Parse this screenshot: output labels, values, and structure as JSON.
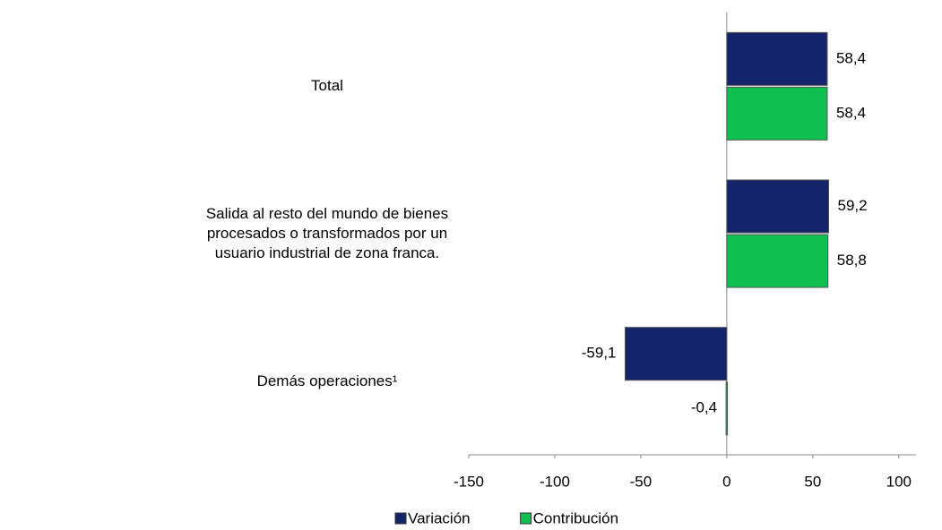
{
  "chart_data": {
    "type": "bar",
    "orientation": "horizontal",
    "categories": [
      "Total",
      "Salida al resto del mundo de bienes procesados o transformados por un usuario industrial de zona franca.",
      "Demás operaciones¹"
    ],
    "series": [
      {
        "name": "Variación",
        "color": "#14246a",
        "values": [
          58.4,
          59.2,
          -59.1
        ],
        "value_labels": [
          "58,4",
          "59,2",
          "-59,1"
        ]
      },
      {
        "name": "Contribución",
        "color": "#0fbf50",
        "values": [
          58.4,
          58.8,
          -0.4
        ],
        "value_labels": [
          "58,4",
          "58,8",
          "-0,4"
        ]
      }
    ],
    "xlim": [
      -150,
      110
    ],
    "xticks": [
      -150,
      -100,
      -50,
      0,
      50,
      100
    ],
    "legend": "bottom"
  }
}
